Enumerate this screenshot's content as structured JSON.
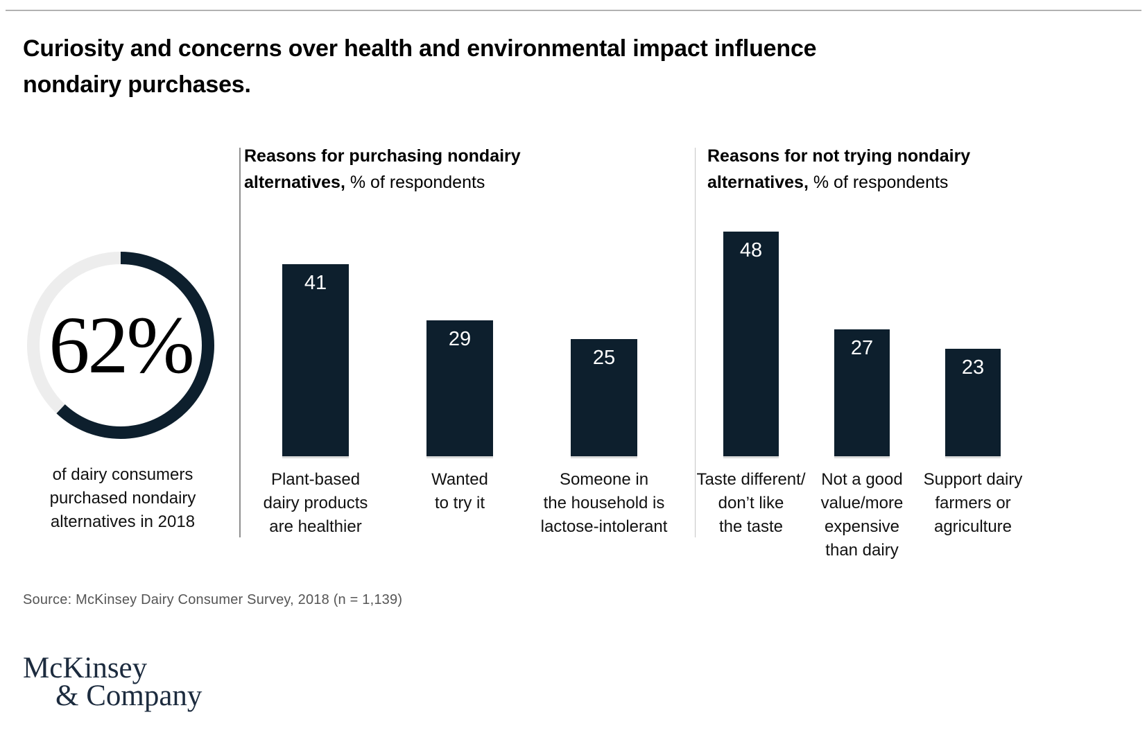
{
  "page": {
    "title": "Curiosity and concerns over health and environmental impact influence\nnondairy purchases.",
    "source": "Source: McKinsey Dairy Consumer Survey, 2018 (n = 1,139)",
    "logo_line1": "McKinsey",
    "logo_line2": "& Company"
  },
  "colors": {
    "navy": "#0d1f2d",
    "donut_track": "#ededed",
    "logo_navy": "#1c2b3e",
    "divider_gray": "#8f8f8f",
    "source_gray": "#555555",
    "bar_value_text": "#ffffff"
  },
  "chart_data": [
    {
      "type": "pie",
      "subtype": "donut",
      "percent": 62,
      "display_value": "62%",
      "caption": "of dairy consumers\npurchased nondairy\nalternatives in 2018",
      "arc_start": "12-o-clock",
      "arc_direction": "clockwise"
    },
    {
      "type": "bar",
      "title_bold": "Reasons for purchasing nondairy\nalternatives,",
      "title_regular": " % of respondents",
      "categories": [
        "Plant-based\ndairy products\nare healthier",
        "Wanted\nto try it",
        "Someone in\nthe household is\nlactose-intolerant"
      ],
      "values": [
        41,
        29,
        25
      ],
      "unit": "% of respondents",
      "data_labels": "inside-top",
      "axes": "none",
      "grid": false,
      "ylim": [
        0,
        50
      ]
    },
    {
      "type": "bar",
      "title_bold": "Reasons for not trying nondairy\nalternatives,",
      "title_regular": " % of respondents",
      "categories": [
        "Taste different/\ndon’t like\nthe taste",
        "Not a good\nvalue/more\nexpensive\nthan dairy",
        "Support dairy\nfarmers or\nagriculture"
      ],
      "values": [
        48,
        27,
        23
      ],
      "unit": "% of respondents",
      "data_labels": "inside-top",
      "axes": "none",
      "grid": false,
      "ylim": [
        0,
        50
      ]
    }
  ]
}
